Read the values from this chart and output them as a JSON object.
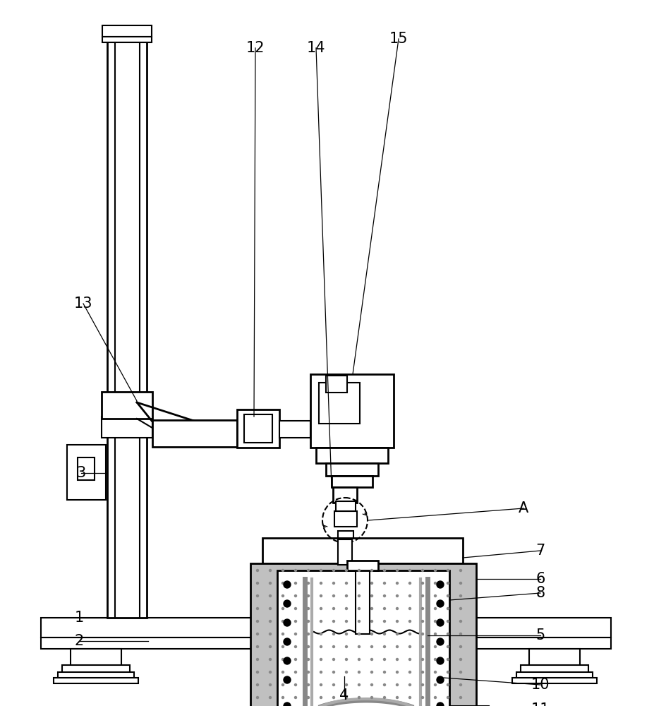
{
  "bg_color": "#ffffff",
  "line_color": "#000000",
  "gray_fill": "#c0c0c0",
  "lw": 1.5,
  "lw2": 2.0
}
